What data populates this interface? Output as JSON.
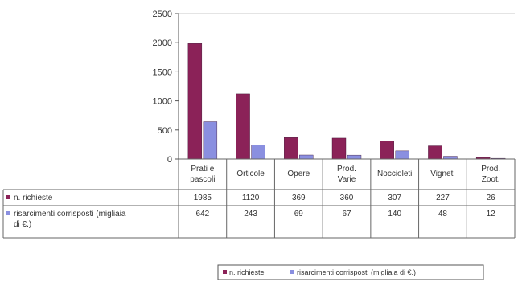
{
  "chart_data": {
    "type": "bar",
    "categories": [
      [
        "Prati e",
        "pascoli"
      ],
      [
        "Orticole"
      ],
      [
        "Opere"
      ],
      [
        "Prod.",
        "Varie"
      ],
      [
        "Noccioleti"
      ],
      [
        "Vigneti"
      ],
      [
        "Prod.",
        "Zoot."
      ]
    ],
    "series": [
      {
        "name": "n. richieste",
        "values": [
          1985,
          1120,
          369,
          360,
          307,
          227,
          26
        ],
        "color": "#8b2258"
      },
      {
        "name": "risarcimenti corrisposti (migliaia di €.)",
        "values": [
          642,
          243,
          69,
          67,
          140,
          48,
          12
        ],
        "color": "#8a8fe0"
      }
    ],
    "row_labels": [
      [
        "n. richieste"
      ],
      [
        "risarcimenti corrisposti (migliaia",
        "di €.)"
      ]
    ],
    "legend_labels": [
      "n. richieste",
      "risarcimenti corrisposti (migliaia di €.)"
    ],
    "yticks": [
      0,
      500,
      1000,
      1500,
      2000,
      2500
    ],
    "ylim": [
      0,
      2500
    ],
    "grid": false,
    "legend_position": "bottom",
    "title": "",
    "xlabel": "",
    "ylabel": ""
  }
}
